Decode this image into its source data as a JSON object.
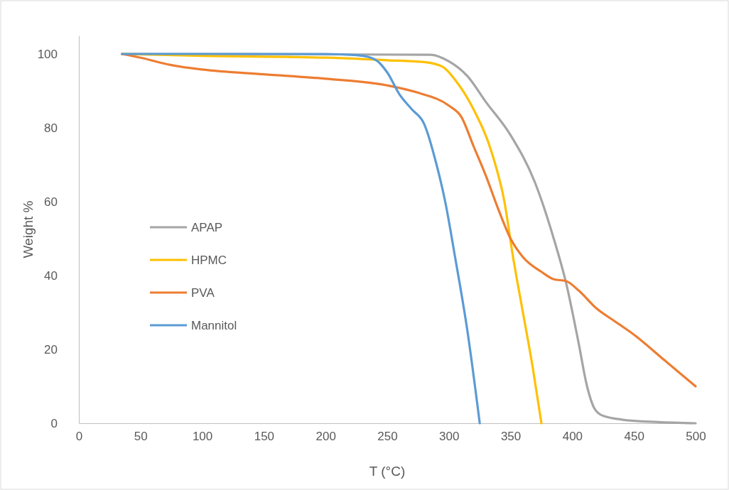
{
  "chart_data": {
    "type": "line",
    "xlabel": "T (°C)",
    "ylabel": "Weight %",
    "xlim": [
      0,
      500
    ],
    "xticks": [
      0,
      50,
      100,
      150,
      200,
      250,
      300,
      350,
      400,
      450,
      500
    ],
    "ylim": [
      0,
      105
    ],
    "yticks": [
      0,
      20,
      40,
      60,
      80,
      100
    ],
    "grid": false,
    "legend": "left",
    "marker": "none",
    "line_style": "solid",
    "series": [
      {
        "name": "APAP",
        "color": "#a5a5a5",
        "x": [
          35,
          285,
          300,
          315,
          330,
          350,
          370,
          385,
          395,
          405,
          412,
          418,
          425,
          440,
          470,
          500
        ],
        "values": [
          100,
          99.8,
          98,
          94,
          87,
          78,
          65,
          50,
          38,
          22,
          10,
          4,
          2,
          1,
          0.3,
          0
        ]
      },
      {
        "name": "HPMC",
        "color": "#ffc000",
        "x": [
          35,
          100,
          200,
          250,
          280,
          295,
          305,
          320,
          335,
          345,
          352,
          360,
          368,
          375
        ],
        "values": [
          100,
          99.5,
          99,
          98.3,
          97.8,
          96.5,
          93,
          85,
          73,
          60,
          45,
          30,
          15,
          0
        ]
      },
      {
        "name": "PVA",
        "color": "#ed7d31",
        "x": [
          35,
          50,
          75,
          100,
          150,
          200,
          250,
          275,
          300,
          310,
          320,
          330,
          340,
          350,
          360,
          375,
          385,
          395,
          405,
          420,
          435,
          450,
          475,
          500
        ],
        "values": [
          100,
          99,
          97,
          95.8,
          94.5,
          93.3,
          91.5,
          89.5,
          86,
          83,
          75,
          67,
          58,
          50,
          45,
          41,
          39,
          38.5,
          36,
          31,
          27.5,
          24,
          17,
          10
        ]
      },
      {
        "name": "Mannitol",
        "color": "#5b9bd5",
        "x": [
          35,
          100,
          200,
          225,
          240,
          250,
          260,
          270,
          280,
          290,
          297,
          305,
          315,
          325
        ],
        "values": [
          100,
          100,
          100,
          99.7,
          98.5,
          95,
          89,
          85,
          81,
          70,
          60,
          45,
          25,
          0
        ]
      }
    ]
  }
}
